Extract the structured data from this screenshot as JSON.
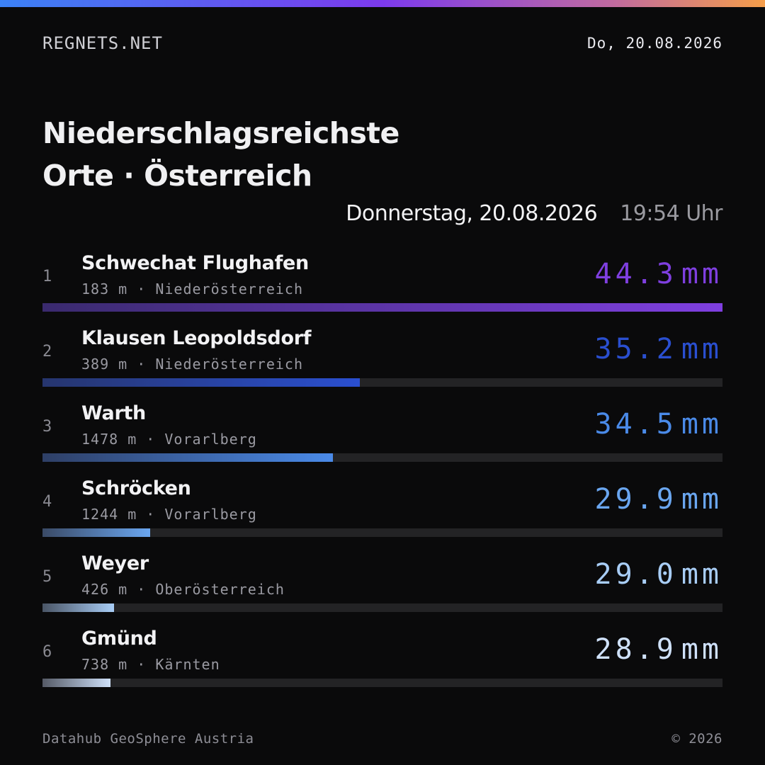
{
  "header": {
    "brand": "REGNETS.NET",
    "date": "Do, 20.08.2026"
  },
  "title": {
    "line1": "Niederschlagsreichste",
    "line2": "Orte · Österreich"
  },
  "subheader": {
    "date": "Donnerstag, 20.08.2026",
    "time": "19:54 Uhr"
  },
  "ranking": [
    {
      "rank": "1",
      "name": "Schwechat Flughafen",
      "elevation": "183 m",
      "region": "Niederösterreich",
      "value": "44.3",
      "unit": "mm",
      "bar_fraction": 1.0,
      "color": "#7f3fe0",
      "color_start": "#3a2a6e"
    },
    {
      "rank": "2",
      "name": "Klausen Leopoldsdorf",
      "elevation": "389 m",
      "region": "Niederösterreich",
      "value": "35.2",
      "unit": "mm",
      "bar_fraction": 0.467,
      "color": "#2a4fd0",
      "color_start": "#26356e"
    },
    {
      "rank": "3",
      "name": "Warth",
      "elevation": "1478 m",
      "region": "Vorarlberg",
      "value": "34.5",
      "unit": "mm",
      "bar_fraction": 0.427,
      "color": "#4a8ae8",
      "color_start": "#2e3f66"
    },
    {
      "rank": "4",
      "name": "Schröcken",
      "elevation": "1244 m",
      "region": "Vorarlberg",
      "value": "29.9",
      "unit": "mm",
      "bar_fraction": 0.158,
      "color": "#6aa6f0",
      "color_start": "#3a4a66"
    },
    {
      "rank": "5",
      "name": "Weyer",
      "elevation": "426 m",
      "region": "Oberösterreich",
      "value": "29.0",
      "unit": "mm",
      "bar_fraction": 0.105,
      "color": "#a8cdf6",
      "color_start": "#4a5566"
    },
    {
      "rank": "6",
      "name": "Gmünd",
      "elevation": "738 m",
      "region": "Kärnten",
      "value": "28.9",
      "unit": "mm",
      "bar_fraction": 0.1,
      "color": "#cfe1fa",
      "color_start": "#555a66"
    }
  ],
  "footer": {
    "source": "Datahub GeoSphere Austria",
    "copyright": "© 2026"
  }
}
